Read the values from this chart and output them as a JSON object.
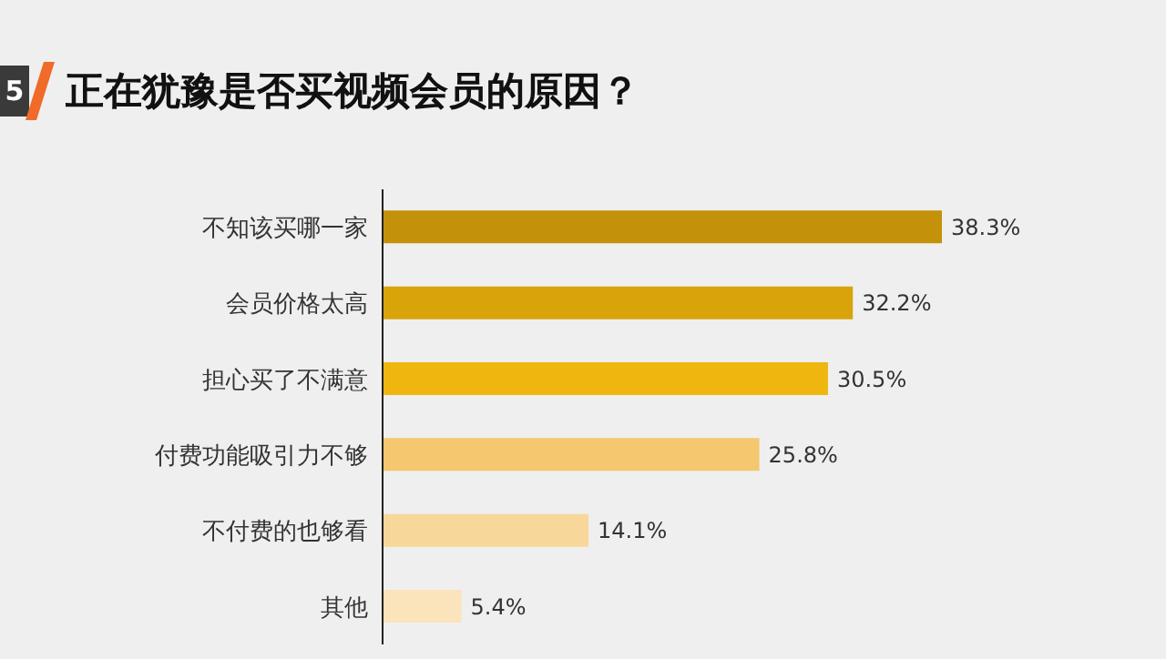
{
  "chart_data": {
    "type": "bar",
    "orientation": "horizontal",
    "title": "正在犹豫是否买视频会员的原因？",
    "annotations": [
      "5"
    ],
    "categories": [
      "不知该买哪一家",
      "会员价格太高",
      "担心买了不满意",
      "付费功能吸引力不够",
      "不付费的也够看",
      "其他"
    ],
    "values": [
      38.3,
      32.2,
      30.5,
      25.8,
      14.1,
      5.4
    ],
    "colors": [
      "#c4920a",
      "#d9a30a",
      "#eeb60e",
      "#f5c76e",
      "#f8d89a",
      "#fbe3bb"
    ],
    "value_labels": [
      "38.3%",
      "32.2%",
      "30.5%",
      "25.8%",
      "14.1%",
      "5.4%"
    ],
    "tick_labels": "y"
  }
}
